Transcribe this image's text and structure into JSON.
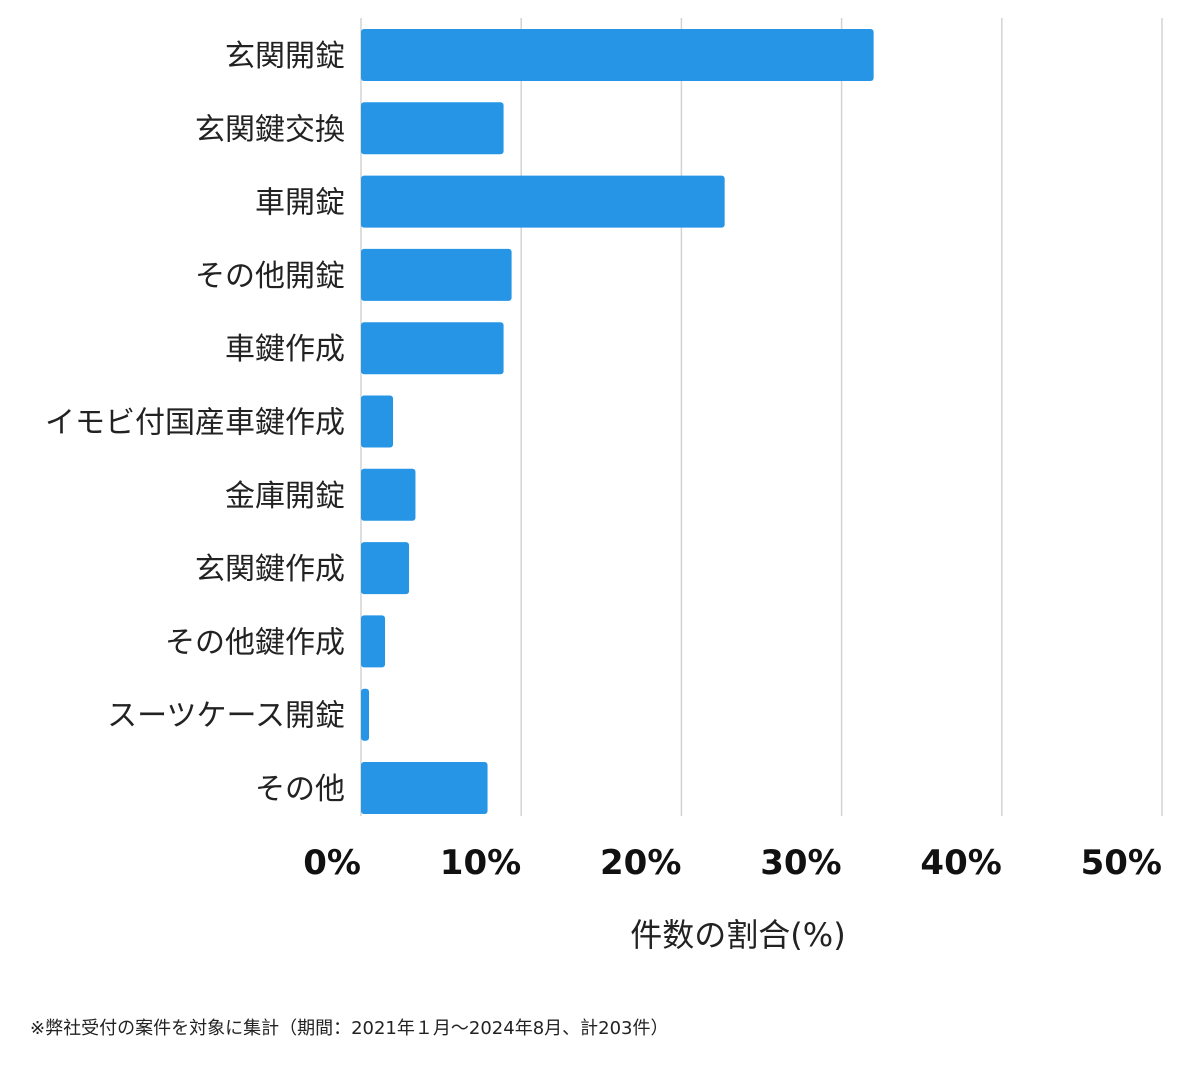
{
  "chart_data": {
    "type": "bar",
    "orientation": "horizontal",
    "categories": [
      "玄関開錠",
      "玄関鍵交換",
      "車開錠",
      "その他開錠",
      "車鍵作成",
      "イモビ付国産車鍵作成",
      "金庫開錠",
      "玄関鍵作成",
      "その他鍵作成",
      "スーツケース開錠",
      "その他"
    ],
    "values": [
      32,
      8.9,
      22.7,
      9.4,
      8.9,
      2.0,
      3.4,
      3.0,
      1.5,
      0.5,
      7.9
    ],
    "xlabel": "件数の割合(%)",
    "ylabel": "",
    "xlim": [
      0,
      50
    ],
    "xticks": [
      0,
      10,
      20,
      30,
      40,
      50
    ],
    "xtick_labels": [
      "0%",
      "10%",
      "20%",
      "30%",
      "40%",
      "50%"
    ],
    "grid": true,
    "bar_color": "#2695e6",
    "grid_color": "#d3d3d3"
  },
  "footnote": "※弊社受付の案件を対象に集計（期間：2021年１月〜2024年8月、計203件）"
}
